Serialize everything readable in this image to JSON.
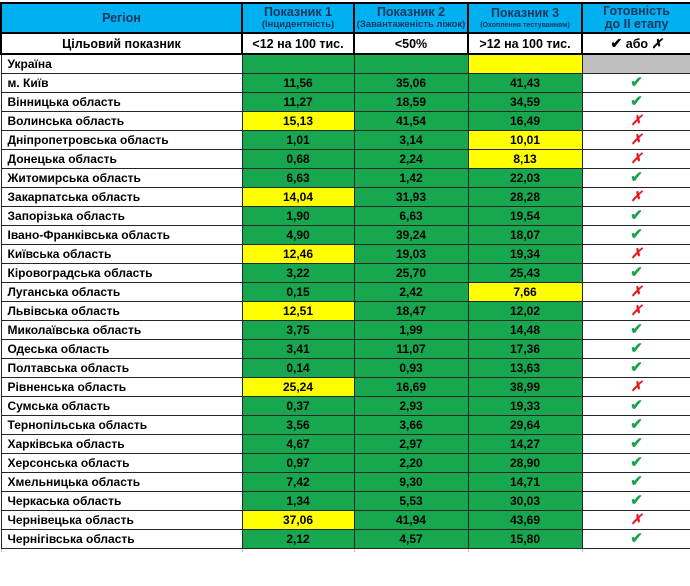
{
  "colors": {
    "header_bg": "#00B0F0",
    "header_text": "#17375E",
    "green": "#17A74F",
    "yellow": "#FFFF00",
    "gray": "#BFBFBF",
    "check_green": "#1FA24F",
    "cross_red": "#E01B22"
  },
  "icons": {
    "check": "✔",
    "cross": "✗"
  },
  "chart_data": {
    "type": "table",
    "header": {
      "region": "Регіон",
      "ind1_title": "Показник 1",
      "ind1_sub": "(Інцидентність)",
      "ind2_title": "Показник 2",
      "ind2_sub": "(Завантаженість ліжок)",
      "ind3_title": "Показник 3",
      "ind3_sub": "(Охоплення тестуванням)",
      "ready_title": "Готовність",
      "ready_title2": "до II етапу"
    },
    "target": {
      "label": "Цільовий показник",
      "ind1": "<12 на 100 тис.",
      "ind2": "<50%",
      "ind3": ">12 на 100 тис.",
      "ready_mid": "або"
    },
    "rows": [
      {
        "region": "Україна",
        "values": [
          "",
          "",
          ""
        ],
        "highlight": [
          false,
          false,
          true
        ],
        "ready": "blank"
      },
      {
        "region": "м. Київ",
        "values": [
          "11,56",
          "35,06",
          "41,43"
        ],
        "highlight": [
          false,
          false,
          false
        ],
        "ready": "check"
      },
      {
        "region": "Вінницька область",
        "values": [
          "11,27",
          "18,59",
          "34,59"
        ],
        "highlight": [
          false,
          false,
          false
        ],
        "ready": "check"
      },
      {
        "region": "Волинська область",
        "values": [
          "15,13",
          "41,54",
          "16,49"
        ],
        "highlight": [
          true,
          false,
          false
        ],
        "ready": "cross"
      },
      {
        "region": "Дніпропетровська область",
        "values": [
          "1,01",
          "3,14",
          "10,01"
        ],
        "highlight": [
          false,
          false,
          true
        ],
        "ready": "cross"
      },
      {
        "region": "Донецька область",
        "values": [
          "0,68",
          "2,24",
          "8,13"
        ],
        "highlight": [
          false,
          false,
          true
        ],
        "ready": "cross"
      },
      {
        "region": "Житомирська область",
        "values": [
          "6,63",
          "1,42",
          "22,03"
        ],
        "highlight": [
          false,
          false,
          false
        ],
        "ready": "check"
      },
      {
        "region": "Закарпатська область",
        "values": [
          "14,04",
          "31,93",
          "28,28"
        ],
        "highlight": [
          true,
          false,
          false
        ],
        "ready": "cross"
      },
      {
        "region": "Запорізька область",
        "values": [
          "1,90",
          "6,63",
          "19,54"
        ],
        "highlight": [
          false,
          false,
          false
        ],
        "ready": "check"
      },
      {
        "region": "Івано-Франківська область",
        "values": [
          "4,90",
          "39,24",
          "18,07"
        ],
        "highlight": [
          false,
          false,
          false
        ],
        "ready": "check"
      },
      {
        "region": "Київська область",
        "values": [
          "12,46",
          "19,03",
          "19,34"
        ],
        "highlight": [
          true,
          false,
          false
        ],
        "ready": "cross"
      },
      {
        "region": "Кіровоградська область",
        "values": [
          "3,22",
          "25,70",
          "25,43"
        ],
        "highlight": [
          false,
          false,
          false
        ],
        "ready": "check"
      },
      {
        "region": "Луганська область",
        "values": [
          "0,15",
          "2,42",
          "7,66"
        ],
        "highlight": [
          false,
          false,
          true
        ],
        "ready": "cross"
      },
      {
        "region": "Львівська область",
        "values": [
          "12,51",
          "18,47",
          "12,02"
        ],
        "highlight": [
          true,
          false,
          false
        ],
        "ready": "cross"
      },
      {
        "region": "Миколаївська область",
        "values": [
          "3,75",
          "1,99",
          "14,48"
        ],
        "highlight": [
          false,
          false,
          false
        ],
        "ready": "check"
      },
      {
        "region": "Одеська область",
        "values": [
          "3,41",
          "11,07",
          "17,36"
        ],
        "highlight": [
          false,
          false,
          false
        ],
        "ready": "check"
      },
      {
        "region": "Полтавська область",
        "values": [
          "0,14",
          "0,93",
          "13,63"
        ],
        "highlight": [
          false,
          false,
          false
        ],
        "ready": "check"
      },
      {
        "region": "Рівненська область",
        "values": [
          "25,24",
          "16,69",
          "38,99"
        ],
        "highlight": [
          true,
          false,
          false
        ],
        "ready": "cross"
      },
      {
        "region": "Сумська область",
        "values": [
          "0,37",
          "2,93",
          "19,33"
        ],
        "highlight": [
          false,
          false,
          false
        ],
        "ready": "check"
      },
      {
        "region": "Тернопільська область",
        "values": [
          "3,56",
          "3,66",
          "29,64"
        ],
        "highlight": [
          false,
          false,
          false
        ],
        "ready": "check"
      },
      {
        "region": "Харківська область",
        "values": [
          "4,67",
          "2,97",
          "14,27"
        ],
        "highlight": [
          false,
          false,
          false
        ],
        "ready": "check"
      },
      {
        "region": "Херсонська область",
        "values": [
          "0,97",
          "2,20",
          "28,90"
        ],
        "highlight": [
          false,
          false,
          false
        ],
        "ready": "check"
      },
      {
        "region": "Хмельницька область",
        "values": [
          "7,42",
          "9,30",
          "14,71"
        ],
        "highlight": [
          false,
          false,
          false
        ],
        "ready": "check"
      },
      {
        "region": "Черкаська область",
        "values": [
          "1,34",
          "5,53",
          "30,03"
        ],
        "highlight": [
          false,
          false,
          false
        ],
        "ready": "check"
      },
      {
        "region": "Чернівецька область",
        "values": [
          "37,06",
          "41,94",
          "43,69"
        ],
        "highlight": [
          true,
          false,
          false
        ],
        "ready": "cross"
      },
      {
        "region": "Чернігівська область",
        "values": [
          "2,12",
          "4,57",
          "15,80"
        ],
        "highlight": [
          false,
          false,
          false
        ],
        "ready": "check"
      }
    ]
  }
}
